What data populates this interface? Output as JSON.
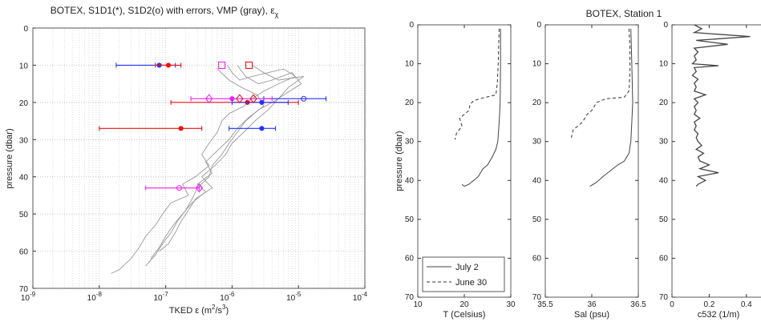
{
  "chart_data": [
    {
      "type": "scatter",
      "title": "BOTEX, S1D1(*), S1D2(o) with errors, VMP (gray), ",
      "title_symbol": "ε",
      "title_subscript": "χ",
      "xlabel_prefix": "TKED ε (m",
      "xlabel_sup1": "2",
      "xlabel_mid": "/s",
      "xlabel_sup2": "3",
      "xlabel_suffix": ")",
      "ylabel": "pressure (dbar)",
      "xscale": "log",
      "xlim": [
        1e-09,
        0.0001
      ],
      "ylim": [
        70,
        0
      ],
      "xticks": [
        {
          "base": "10",
          "exp": "-9"
        },
        {
          "base": "10",
          "exp": "-8"
        },
        {
          "base": "10",
          "exp": "-7"
        },
        {
          "base": "10",
          "exp": "-6"
        },
        {
          "base": "10",
          "exp": "-5"
        },
        {
          "base": "10",
          "exp": "-4"
        }
      ],
      "yticks": [
        "0",
        "10",
        "20",
        "30",
        "40",
        "50",
        "60",
        "70"
      ],
      "grid": true,
      "colors": {
        "blue": "#2233ff",
        "red": "#ee1111",
        "magenta": "#ee22ee",
        "gray": "#999999"
      },
      "vmp_profiles": [
        {
          "points": [
            [
              8.5e-07,
              10
            ],
            [
              1e-06,
              12
            ],
            [
              1.3e-06,
              14
            ],
            [
              2e-06,
              13
            ],
            [
              3.5e-06,
              12
            ],
            [
              6e-06,
              11
            ],
            [
              9e-06,
              13
            ],
            [
              5e-06,
              15
            ],
            [
              3e-06,
              17
            ],
            [
              2e-06,
              19
            ],
            [
              1.5e-06,
              21
            ],
            [
              9e-07,
              23
            ],
            [
              7e-07,
              25
            ],
            [
              6e-07,
              28
            ],
            [
              4.5e-07,
              31
            ],
            [
              3.5e-07,
              34
            ],
            [
              4.5e-07,
              37
            ],
            [
              2.8e-07,
              40
            ],
            [
              1.8e-07,
              42
            ],
            [
              2.2e-07,
              45
            ],
            [
              1.2e-07,
              47
            ],
            [
              9e-08,
              50
            ],
            [
              7e-08,
              53
            ],
            [
              5e-08,
              56
            ],
            [
              4e-08,
              59
            ],
            [
              3e-08,
              62
            ],
            [
              2e-08,
              65
            ],
            [
              1.5e-08,
              66
            ]
          ]
        },
        {
          "points": [
            [
              1.2e-06,
              10
            ],
            [
              1.6e-06,
              13
            ],
            [
              2.5e-06,
              15
            ],
            [
              4e-06,
              14
            ],
            [
              8e-06,
              12
            ],
            [
              1.1e-05,
              15
            ],
            [
              6e-06,
              18
            ],
            [
              4e-06,
              20
            ],
            [
              2.5e-06,
              22
            ],
            [
              1.6e-06,
              25
            ],
            [
              1.2e-06,
              28
            ],
            [
              9e-07,
              31
            ],
            [
              7e-07,
              34
            ],
            [
              5e-07,
              37
            ],
            [
              4.5e-07,
              40
            ],
            [
              3e-07,
              43
            ],
            [
              2.5e-07,
              46
            ],
            [
              2e-07,
              49
            ],
            [
              1.5e-07,
              52
            ],
            [
              1.2e-07,
              55
            ],
            [
              9e-08,
              58
            ],
            [
              7e-08,
              61
            ],
            [
              5e-08,
              64
            ]
          ]
        },
        {
          "points": [
            [
              6e-07,
              11
            ],
            [
              9e-07,
              14
            ],
            [
              1.4e-06,
              16
            ],
            [
              2.4e-06,
              18
            ],
            [
              3e-06,
              21
            ],
            [
              1.8e-06,
              24
            ],
            [
              1.2e-06,
              27
            ],
            [
              9e-07,
              30
            ],
            [
              6e-07,
              33
            ],
            [
              4e-07,
              36
            ],
            [
              5e-07,
              39
            ],
            [
              3e-07,
              42
            ],
            [
              4e-07,
              44
            ],
            [
              2.5e-07,
              47
            ],
            [
              1.8e-07,
              50
            ],
            [
              1.3e-07,
              53
            ],
            [
              1e-07,
              56
            ],
            [
              8e-08,
              59
            ],
            [
              6e-08,
              62
            ]
          ]
        },
        {
          "points": [
            [
              2e-06,
              10
            ],
            [
              3e-06,
              12
            ],
            [
              5e-06,
              14
            ],
            [
              1.2e-05,
              13
            ],
            [
              7e-06,
              16
            ],
            [
              5e-06,
              19
            ],
            [
              3.5e-06,
              22
            ],
            [
              2.2e-06,
              25
            ],
            [
              1.5e-06,
              28
            ],
            [
              1e-06,
              31
            ],
            [
              8e-07,
              34
            ],
            [
              5.5e-07,
              37
            ],
            [
              3.5e-07,
              40
            ],
            [
              5e-07,
              43
            ],
            [
              2.8e-07,
              46
            ],
            [
              2.2e-07,
              49
            ],
            [
              1.7e-07,
              52
            ],
            [
              1.4e-07,
              55
            ],
            [
              1.1e-07,
              58
            ],
            [
              8e-08,
              60
            ]
          ]
        }
      ],
      "errorbars": [
        {
          "color": "blue",
          "marker": "*",
          "y": 10,
          "x": 8e-08,
          "xmin": 1.8e-08,
          "xmax": 1.4e-07
        },
        {
          "color": "red",
          "marker": "*",
          "y": 10,
          "x": 1.1e-07,
          "xmin": 7e-08,
          "xmax": 1.7e-07
        },
        {
          "color": "red",
          "marker": "*",
          "y": 20,
          "x": 1.7e-06,
          "xmin": 1.2e-07,
          "xmax": 1e-05
        },
        {
          "color": "blue",
          "marker": "o",
          "y": 19,
          "x": 1.2e-05,
          "xmin": 3e-06,
          "xmax": 2.6e-05
        },
        {
          "color": "magenta",
          "marker": "*",
          "y": 19,
          "x": 1e-06,
          "xmin": 2.4e-07,
          "xmax": 4e-06
        },
        {
          "color": "blue",
          "marker": "*",
          "y": 20,
          "x": 2.8e-06,
          "xmin": 1e-06,
          "xmax": 7e-06
        },
        {
          "color": "red",
          "marker": "*",
          "y": 27,
          "x": 1.7e-07,
          "xmin": 1e-08,
          "xmax": 3.5e-07
        },
        {
          "color": "blue",
          "marker": "*",
          "y": 27,
          "x": 2.8e-06,
          "xmin": 9e-07,
          "xmax": 4.5e-06
        },
        {
          "color": "magenta",
          "marker": "o",
          "y": 43,
          "x": 1.6e-07,
          "xmin": 5e-08,
          "xmax": 3.2e-07
        }
      ],
      "squares": [
        {
          "color": "magenta",
          "x": 7e-07,
          "y": 10
        },
        {
          "color": "red",
          "x": 1.8e-06,
          "y": 10
        }
      ],
      "diamonds": [
        {
          "color": "magenta",
          "x": 4.5e-07,
          "y": 19
        },
        {
          "color": "red",
          "x": 1.3e-06,
          "y": 19
        },
        {
          "color": "red",
          "x": 2.1e-06,
          "y": 19
        },
        {
          "color": "magenta",
          "x": 3.2e-07,
          "y": 43
        }
      ]
    },
    {
      "type": "line",
      "xlabel": "T (Celsius)",
      "ylabel": "pressure (dbar)",
      "xlim": [
        10,
        30
      ],
      "ylim": [
        70,
        0
      ],
      "xticks": [
        "10",
        "20",
        "30"
      ],
      "yticks": [
        "0",
        "10",
        "20",
        "30",
        "40",
        "50",
        "60",
        "70"
      ],
      "legend_placement": "bottom-left",
      "series": [
        {
          "name": "July 2",
          "style": "solid",
          "points": [
            [
              27.8,
              1
            ],
            [
              27.8,
              10
            ],
            [
              27.7,
              20
            ],
            [
              27.5,
              25
            ],
            [
              27.2,
              30
            ],
            [
              26.8,
              32
            ],
            [
              26,
              34
            ],
            [
              25,
              36
            ],
            [
              24,
              37
            ],
            [
              23,
              39
            ],
            [
              22,
              40
            ],
            [
              21,
              41
            ],
            [
              20,
              41.5
            ],
            [
              19.5,
              41
            ]
          ]
        },
        {
          "name": "June 30",
          "style": "dashed",
          "points": [
            [
              27.5,
              1
            ],
            [
              27.4,
              5
            ],
            [
              27.3,
              10
            ],
            [
              27.1,
              15
            ],
            [
              26.8,
              18
            ],
            [
              24,
              18.8
            ],
            [
              22,
              19.5
            ],
            [
              21.2,
              20.5
            ],
            [
              21,
              22
            ],
            [
              19,
              24
            ],
            [
              19.5,
              26
            ],
            [
              18.3,
              28
            ],
            [
              18,
              29.5
            ]
          ]
        }
      ]
    },
    {
      "type": "line",
      "title": "BOTEX, Station 1",
      "xlabel": "Sal (psu)",
      "xlim": [
        35.5,
        36.5
      ],
      "ylim": [
        70,
        0
      ],
      "xticks": [
        "35.5",
        "36",
        "36.5"
      ],
      "yticks": [
        "0",
        "10",
        "20",
        "30",
        "40",
        "50",
        "60",
        "70"
      ],
      "series": [
        {
          "style": "solid",
          "points": [
            [
              36.42,
              1
            ],
            [
              36.43,
              10
            ],
            [
              36.44,
              20
            ],
            [
              36.43,
              25
            ],
            [
              36.42,
              30
            ],
            [
              36.4,
              33
            ],
            [
              36.35,
              35
            ],
            [
              36.28,
              36
            ],
            [
              36.2,
              37.5
            ],
            [
              36.12,
              39
            ],
            [
              36.05,
              40.5
            ],
            [
              35.98,
              41.5
            ]
          ]
        },
        {
          "style": "dashed",
          "points": [
            [
              36.4,
              1
            ],
            [
              36.41,
              6
            ],
            [
              36.41,
              12
            ],
            [
              36.4,
              17
            ],
            [
              36.35,
              18.6
            ],
            [
              36.15,
              19
            ],
            [
              36.05,
              20
            ],
            [
              36.0,
              22
            ],
            [
              35.95,
              23
            ],
            [
              35.9,
              25
            ],
            [
              35.85,
              26
            ],
            [
              35.8,
              27
            ],
            [
              35.78,
              29
            ]
          ]
        }
      ]
    },
    {
      "type": "line",
      "xlabel": "c532 (1/m)",
      "xlim": [
        0,
        0.5
      ],
      "ylim": [
        70,
        0
      ],
      "xticks": [
        "0",
        "0.2",
        "0.4"
      ],
      "yticks": [
        "0",
        "10",
        "20",
        "30",
        "40",
        "50",
        "60",
        "70"
      ],
      "series": [
        {
          "style": "solid",
          "points": [
            [
              0.12,
              0
            ],
            [
              0.16,
              1
            ],
            [
              0.12,
              2
            ],
            [
              0.42,
              3
            ],
            [
              0.13,
              4
            ],
            [
              0.3,
              5
            ],
            [
              0.12,
              6
            ],
            [
              0.14,
              7
            ],
            [
              0.12,
              8
            ],
            [
              0.13,
              9
            ],
            [
              0.11,
              10
            ],
            [
              0.25,
              10.5
            ],
            [
              0.12,
              11
            ],
            [
              0.13,
              12
            ],
            [
              0.11,
              13
            ],
            [
              0.14,
              14
            ],
            [
              0.12,
              15
            ],
            [
              0.13,
              16
            ],
            [
              0.12,
              17
            ],
            [
              0.18,
              18
            ],
            [
              0.12,
              19
            ],
            [
              0.14,
              20
            ],
            [
              0.12,
              21
            ],
            [
              0.13,
              22
            ],
            [
              0.12,
              23
            ],
            [
              0.15,
              24
            ],
            [
              0.12,
              25
            ],
            [
              0.13,
              26
            ],
            [
              0.12,
              27
            ],
            [
              0.14,
              28
            ],
            [
              0.13,
              29
            ],
            [
              0.14,
              30
            ],
            [
              0.16,
              31
            ],
            [
              0.13,
              32
            ],
            [
              0.17,
              33
            ],
            [
              0.14,
              34
            ],
            [
              0.15,
              35
            ],
            [
              0.2,
              36
            ],
            [
              0.15,
              37
            ],
            [
              0.25,
              38
            ],
            [
              0.14,
              39
            ],
            [
              0.18,
              40
            ],
            [
              0.14,
              41
            ],
            [
              0.13,
              41.5
            ]
          ]
        }
      ]
    }
  ]
}
